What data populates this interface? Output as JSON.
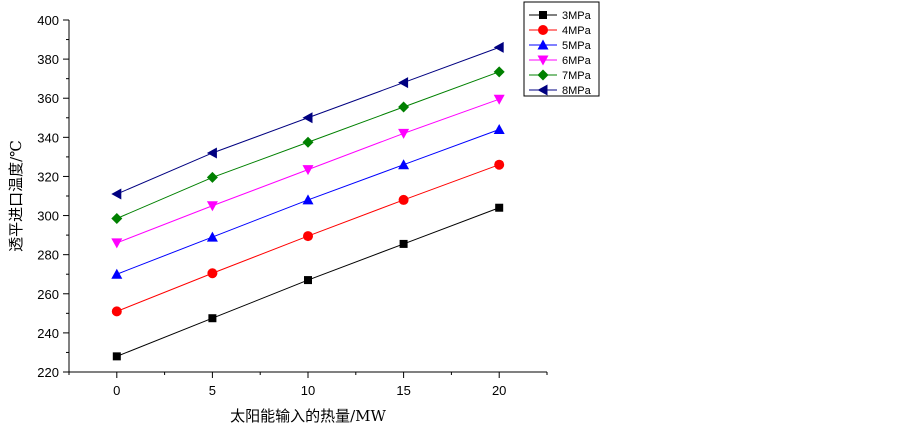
{
  "chart_data": {
    "type": "line",
    "title": "",
    "xlabel": "太阳能输入的热量/MW",
    "ylabel": "透平进口温度/℃",
    "x": [
      0,
      5,
      10,
      15,
      20
    ],
    "xticks": [
      "0",
      "5",
      "10",
      "15",
      "20"
    ],
    "yticks": [
      "220",
      "240",
      "260",
      "280",
      "300",
      "320",
      "340",
      "360",
      "380",
      "400"
    ],
    "xlim": [
      -2.5,
      22.5
    ],
    "ylim": [
      220,
      400
    ],
    "legend_position": "top-right",
    "series": [
      {
        "name": "3MPa",
        "marker": "square",
        "color": "#000000",
        "values": [
          228,
          247.5,
          267,
          285.5,
          304
        ]
      },
      {
        "name": "4MPa",
        "marker": "circle",
        "color": "#ff0000",
        "values": [
          251,
          270.5,
          289.5,
          308,
          326
        ]
      },
      {
        "name": "5MPa",
        "marker": "triangle-up",
        "color": "#0000ff",
        "values": [
          270,
          289,
          308,
          326,
          344
        ]
      },
      {
        "name": "6MPa",
        "marker": "triangle-down",
        "color": "#ff00ff",
        "values": [
          286,
          305,
          323.5,
          342,
          359.5
        ]
      },
      {
        "name": "7MPa",
        "marker": "diamond",
        "color": "#008000",
        "values": [
          298.5,
          319.5,
          337.5,
          355.5,
          373.5
        ]
      },
      {
        "name": "8MPa",
        "marker": "triangle-left",
        "color": "#000080",
        "values": [
          311,
          332,
          350,
          368,
          386
        ]
      }
    ]
  }
}
